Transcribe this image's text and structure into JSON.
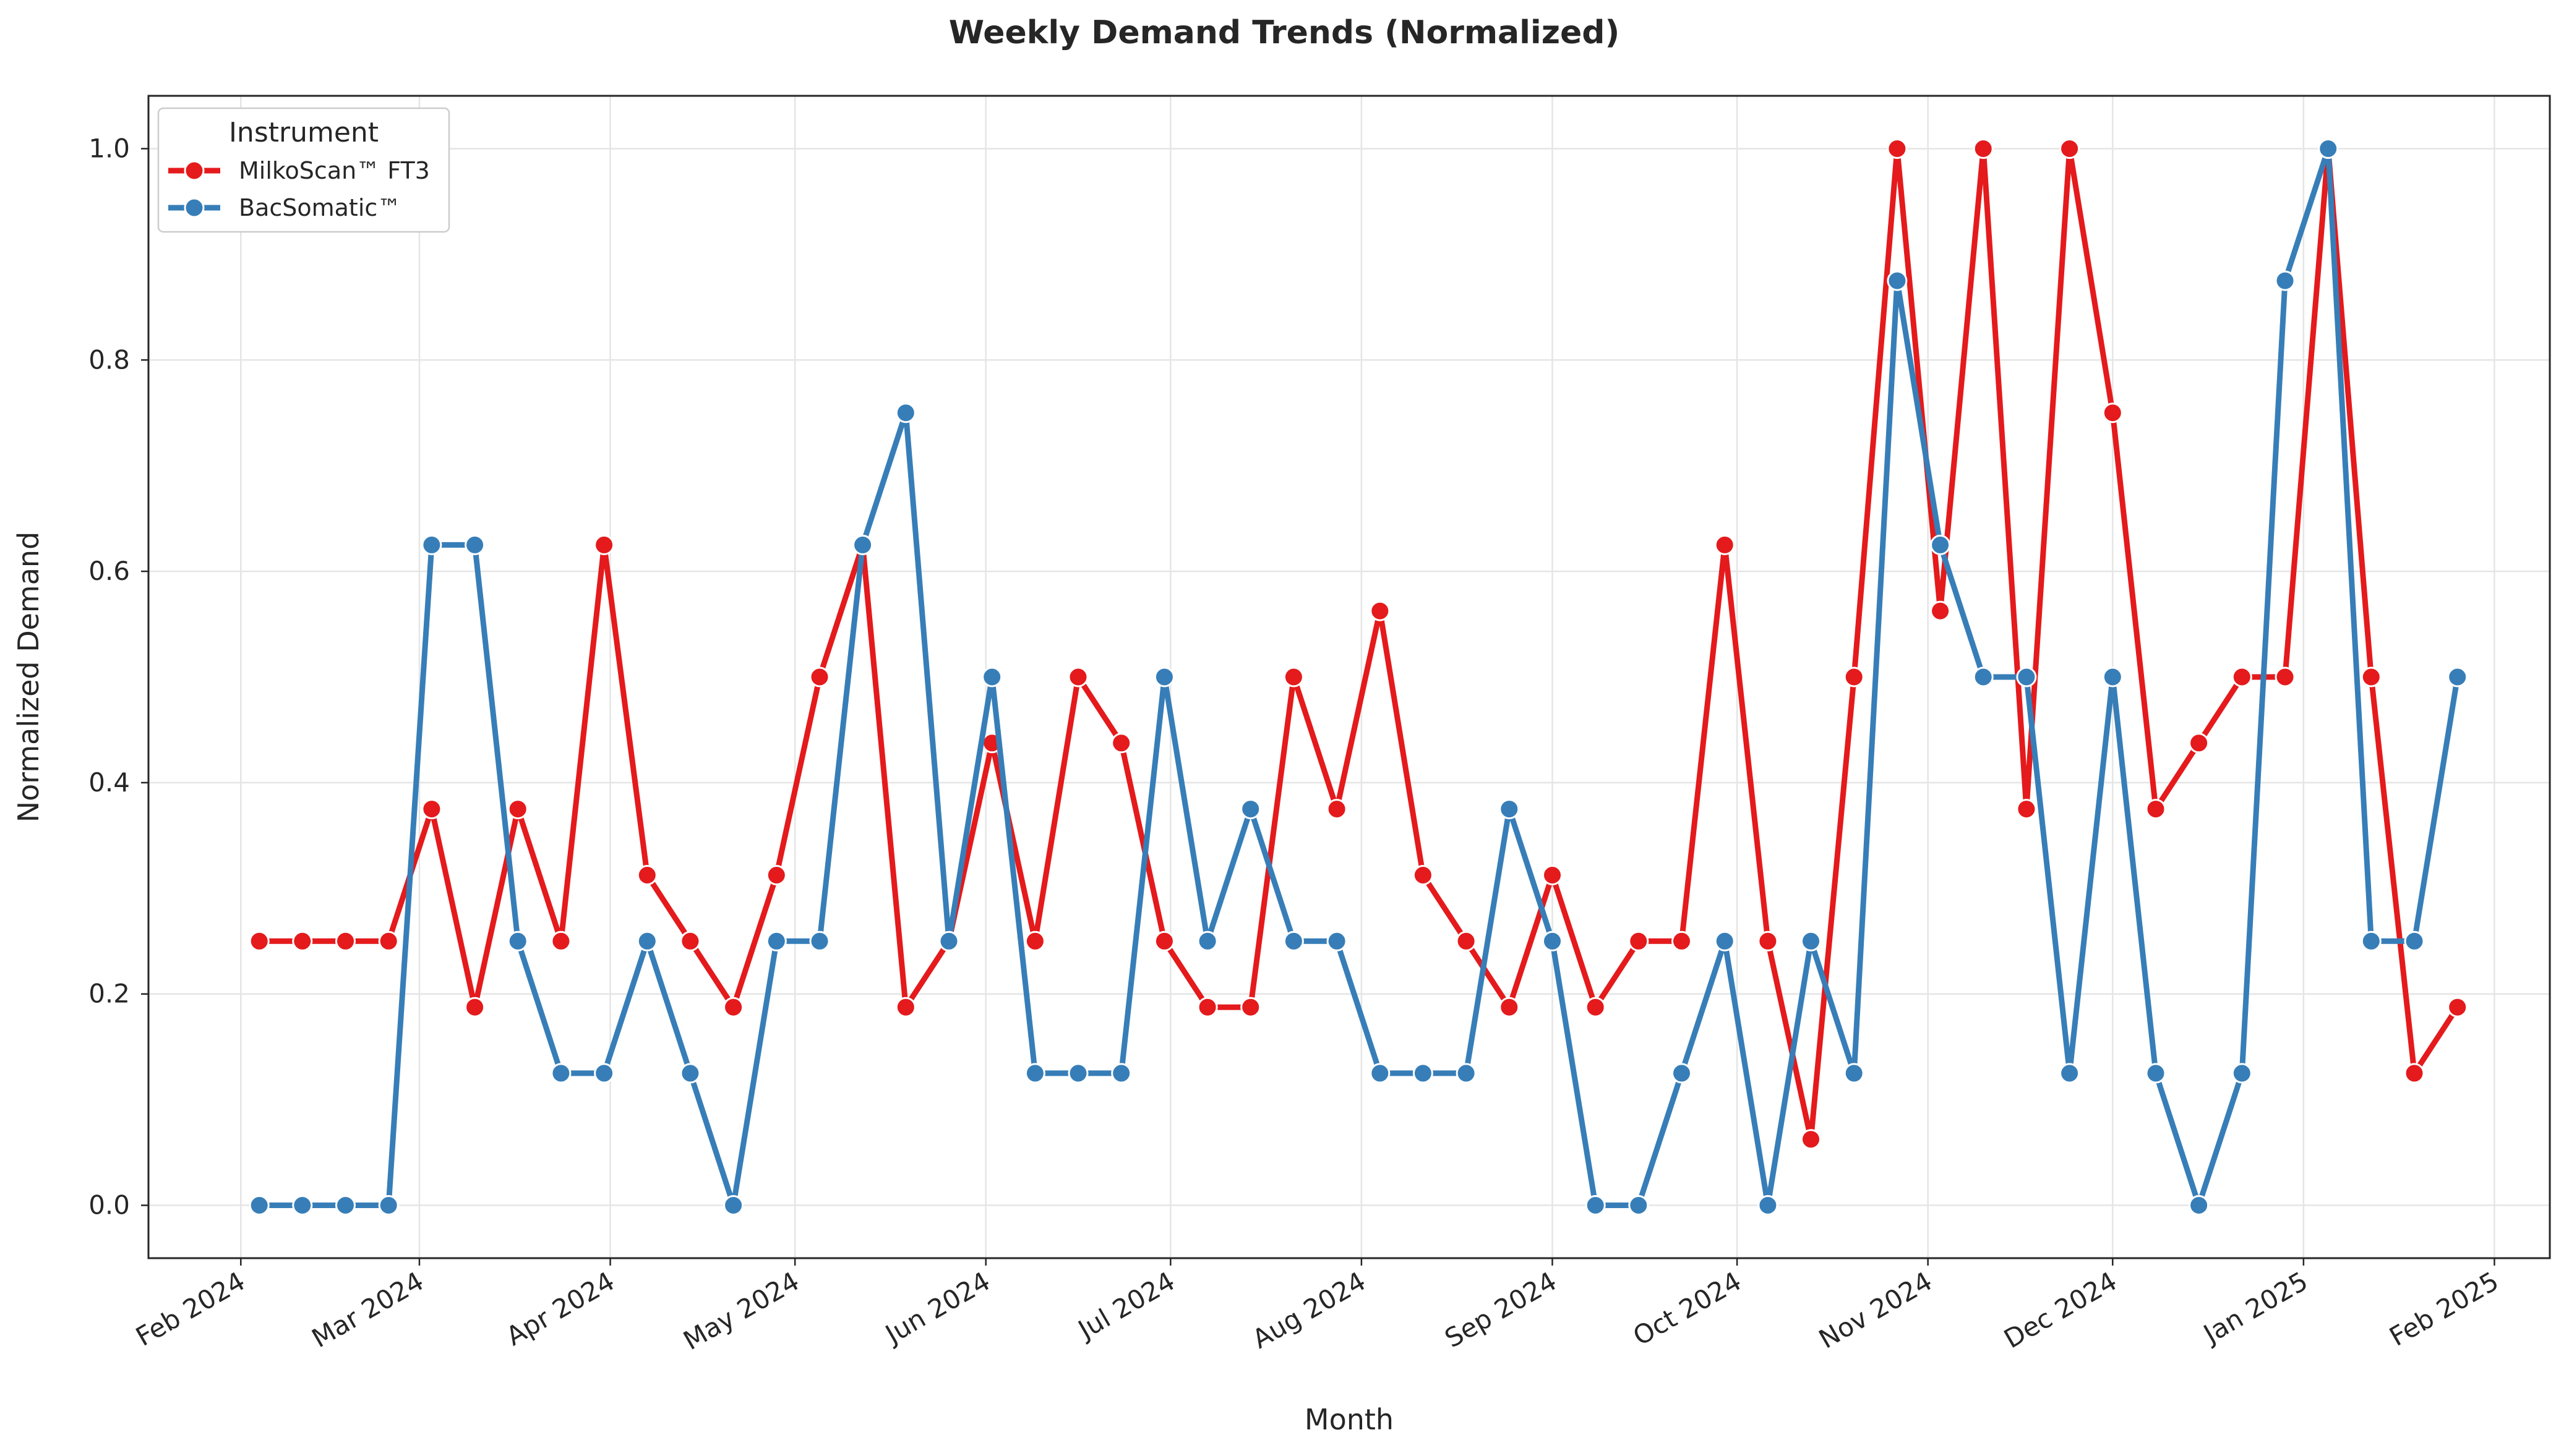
{
  "chart_data": {
    "type": "line",
    "title": "Weekly Demand Trends (Normalized)",
    "xlabel": "Month",
    "ylabel": "Normalized Demand",
    "x_type": "date",
    "xlim": [
      "2024-01-17",
      "2025-02-10"
    ],
    "ylim": [
      -0.05,
      1.05
    ],
    "grid": true,
    "legend": {
      "title": "Instrument",
      "position": "top-left"
    },
    "x_ticks": [
      {
        "date": "2024-02-01",
        "label": "Feb 2024"
      },
      {
        "date": "2024-03-01",
        "label": "Mar 2024"
      },
      {
        "date": "2024-04-01",
        "label": "Apr 2024"
      },
      {
        "date": "2024-05-01",
        "label": "May 2024"
      },
      {
        "date": "2024-06-01",
        "label": "Jun 2024"
      },
      {
        "date": "2024-07-01",
        "label": "Jul 2024"
      },
      {
        "date": "2024-08-01",
        "label": "Aug 2024"
      },
      {
        "date": "2024-09-01",
        "label": "Sep 2024"
      },
      {
        "date": "2024-10-01",
        "label": "Oct 2024"
      },
      {
        "date": "2024-11-01",
        "label": "Nov 2024"
      },
      {
        "date": "2024-12-01",
        "label": "Dec 2024"
      },
      {
        "date": "2025-01-01",
        "label": "Jan 2025"
      },
      {
        "date": "2025-02-01",
        "label": "Feb 2025"
      }
    ],
    "y_ticks": [
      {
        "value": 0.0,
        "label": "0.0"
      },
      {
        "value": 0.2,
        "label": "0.2"
      },
      {
        "value": 0.4,
        "label": "0.4"
      },
      {
        "value": 0.6,
        "label": "0.6"
      },
      {
        "value": 0.8,
        "label": "0.8"
      },
      {
        "value": 1.0,
        "label": "1.0"
      }
    ],
    "x": [
      "2024-02-04",
      "2024-02-11",
      "2024-02-18",
      "2024-02-25",
      "2024-03-03",
      "2024-03-10",
      "2024-03-17",
      "2024-03-24",
      "2024-03-31",
      "2024-04-07",
      "2024-04-14",
      "2024-04-21",
      "2024-04-28",
      "2024-05-05",
      "2024-05-12",
      "2024-05-19",
      "2024-05-26",
      "2024-06-02",
      "2024-06-09",
      "2024-06-16",
      "2024-06-23",
      "2024-06-30",
      "2024-07-07",
      "2024-07-14",
      "2024-07-21",
      "2024-07-28",
      "2024-08-04",
      "2024-08-11",
      "2024-08-18",
      "2024-08-25",
      "2024-09-01",
      "2024-09-08",
      "2024-09-15",
      "2024-09-22",
      "2024-09-29",
      "2024-10-06",
      "2024-10-13",
      "2024-10-20",
      "2024-10-27",
      "2024-11-03",
      "2024-11-10",
      "2024-11-17",
      "2024-11-24",
      "2024-12-01",
      "2024-12-08",
      "2024-12-15",
      "2024-12-22",
      "2024-12-29",
      "2025-01-05",
      "2025-01-12",
      "2025-01-19",
      "2025-01-26"
    ],
    "series": [
      {
        "name": "MilkoScan™ FT3",
        "color": "#e41a1c",
        "values": [
          0.25,
          0.25,
          0.25,
          0.25,
          0.375,
          0.1875,
          0.375,
          0.25,
          0.625,
          0.3125,
          0.25,
          0.1875,
          0.3125,
          0.5,
          0.625,
          0.1875,
          0.25,
          0.4375,
          0.25,
          0.5,
          0.4375,
          0.25,
          0.1875,
          0.1875,
          0.5,
          0.375,
          0.5625,
          0.3125,
          0.25,
          0.1875,
          0.3125,
          0.1875,
          0.25,
          0.25,
          0.625,
          0.25,
          0.0625,
          0.5,
          1.0,
          0.5625,
          1.0,
          0.375,
          1.0,
          0.75,
          0.375,
          0.4375,
          0.5,
          0.5,
          1.0,
          0.5,
          0.125,
          0.1875
        ]
      },
      {
        "name": "BacSomatic™",
        "color": "#377eb8",
        "values": [
          0.0,
          0.0,
          0.0,
          0.0,
          0.625,
          0.625,
          0.25,
          0.125,
          0.125,
          0.25,
          0.125,
          0.0,
          0.25,
          0.25,
          0.625,
          0.75,
          0.25,
          0.5,
          0.125,
          0.125,
          0.125,
          0.5,
          0.25,
          0.375,
          0.25,
          0.25,
          0.125,
          0.125,
          0.125,
          0.375,
          0.25,
          0.0,
          0.0,
          0.125,
          0.25,
          0.0,
          0.25,
          0.125,
          0.875,
          0.625,
          0.5,
          0.5,
          0.125,
          0.5,
          0.125,
          0.0,
          0.125,
          0.875,
          1.0,
          0.25,
          0.25,
          0.5
        ]
      }
    ]
  }
}
